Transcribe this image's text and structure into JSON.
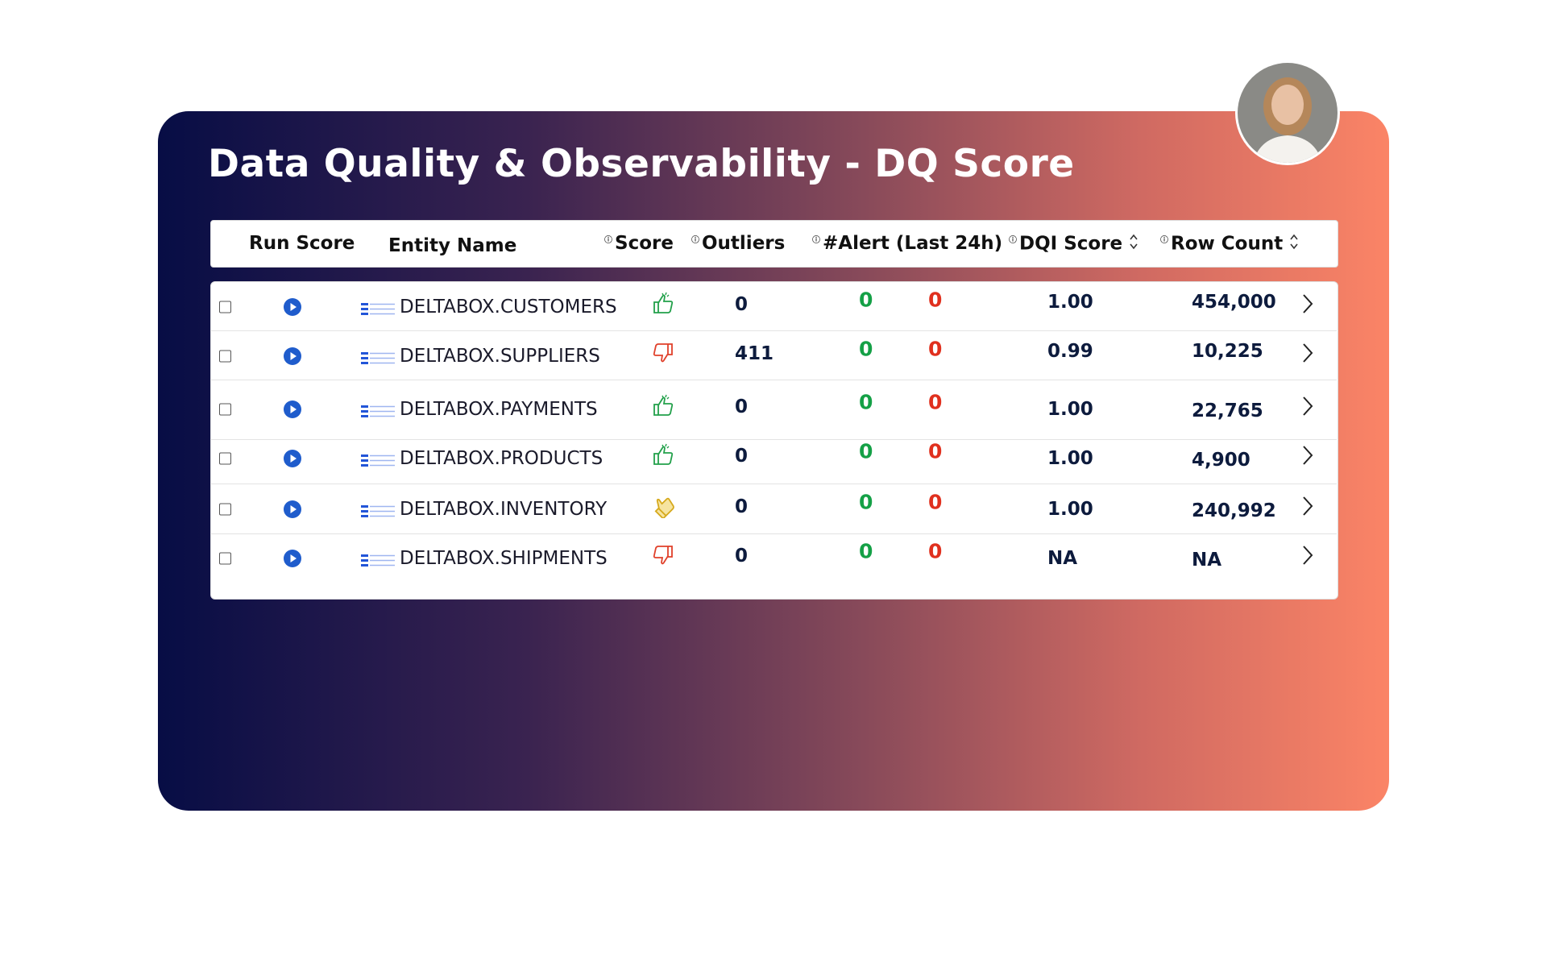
{
  "header": {
    "title": "Data Quality & Observability - DQ Score"
  },
  "table": {
    "columns": [
      "Run Score",
      "Entity Name",
      "Score",
      "Outliers",
      "#Alert (Last 24h)",
      "DQI Score",
      "Row Count"
    ],
    "rows": [
      {
        "entity": "DELTABOX.CUSTOMERS",
        "outliers": "0",
        "alert_ok": "0",
        "alert_bad": "0",
        "dqi": "1.00",
        "row_count": "454,000"
      },
      {
        "entity": "DELTABOX.SUPPLIERS",
        "outliers": "411",
        "alert_ok": "0",
        "alert_bad": "0",
        "dqi": "0.99",
        "row_count": "10,225"
      },
      {
        "entity": "DELTABOX.PAYMENTS",
        "outliers": "0",
        "alert_ok": "0",
        "alert_bad": "0",
        "dqi": "1.00",
        "row_count": "22,765"
      },
      {
        "entity": "DELTABOX.PRODUCTS",
        "outliers": "0",
        "alert_ok": "0",
        "alert_bad": "0",
        "dqi": "1.00",
        "row_count": "4,900"
      },
      {
        "entity": "DELTABOX.INVENTORY",
        "outliers": "0",
        "alert_ok": "0",
        "alert_bad": "0",
        "dqi": "1.00",
        "row_count": "240,992"
      },
      {
        "entity": "DELTABOX.SHIPMENTS",
        "outliers": "0",
        "alert_ok": "0",
        "alert_bad": "0",
        "dqi": "NA",
        "row_count": "NA"
      }
    ]
  }
}
